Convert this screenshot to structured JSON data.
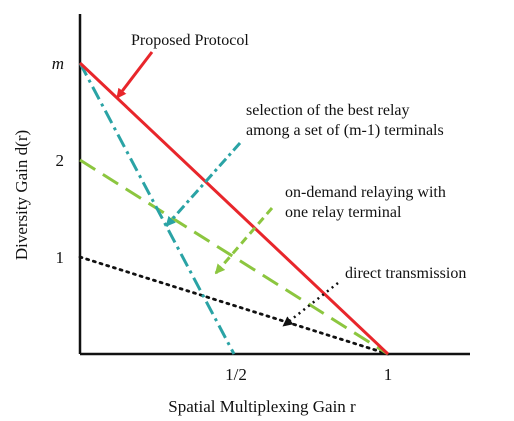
{
  "chart_data": {
    "type": "line",
    "xlabel": "Spatial Multiplexing Gain r",
    "ylabel": "Diversity Gain d(r)",
    "xlim": [
      0,
      1
    ],
    "ylim": [
      0,
      3
    ],
    "grid": false,
    "legend": "none",
    "x_ticks": [
      {
        "value": 0.5,
        "label": "1/2"
      },
      {
        "value": 1,
        "label": "1"
      }
    ],
    "y_ticks": [
      {
        "value": 1,
        "label": "1"
      },
      {
        "value": 2,
        "label": "2"
      },
      {
        "value": 3,
        "label": "m",
        "italic": true
      }
    ],
    "series": [
      {
        "id": "proposed",
        "x": [
          0,
          1
        ],
        "y": [
          3,
          0
        ],
        "color": "#e8262b",
        "style": "solid"
      },
      {
        "id": "best",
        "x": [
          0,
          0.5
        ],
        "y": [
          3,
          0
        ],
        "color": "#2aa3a5",
        "style": "dashdot"
      },
      {
        "id": "ondemand",
        "x": [
          0,
          1
        ],
        "y": [
          2,
          0
        ],
        "color": "#8cc63f",
        "style": "dashed"
      },
      {
        "id": "direct",
        "x": [
          0,
          1
        ],
        "y": [
          1,
          0
        ],
        "color": "#111111",
        "style": "dotted"
      }
    ],
    "annotations": [
      {
        "id": "proposed",
        "lines": [
          "Proposed Protocol"
        ],
        "color": "#e8262b",
        "line_style": "solid",
        "target_x": 0.12,
        "target_y": 2.64
      },
      {
        "id": "best",
        "lines": [
          "selection of the best relay",
          "among a set of (m-1) terminals"
        ],
        "color": "#2aa3a5",
        "line_style": "dashdot",
        "target_x": 0.28,
        "target_y": 1.32
      },
      {
        "id": "ondemand",
        "lines": [
          "on-demand relaying with",
          "one relay terminal"
        ],
        "color": "#8cc63f",
        "line_style": "dashed",
        "target_x": 0.44,
        "target_y": 0.83
      },
      {
        "id": "direct",
        "lines": [
          "direct transmission"
        ],
        "color": "#111111",
        "line_style": "dotted",
        "target_x": 0.66,
        "target_y": 0.29
      }
    ]
  }
}
